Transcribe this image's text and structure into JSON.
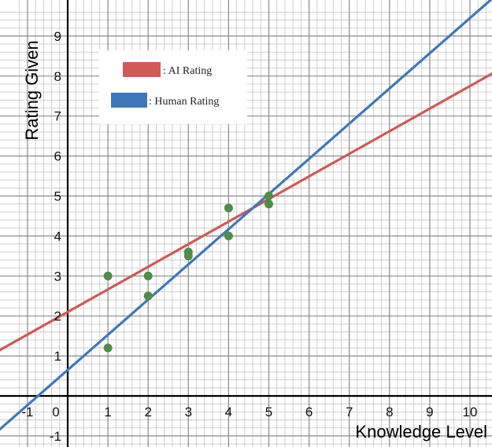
{
  "chart_data": {
    "type": "scatter",
    "xlabel": "Knowledge Level",
    "ylabel": "Rating Given",
    "xlim": [
      -1.3,
      10.6
    ],
    "ylim": [
      -1.3,
      9.7
    ],
    "grid": true,
    "x_ticks": [
      "-1",
      "0",
      "1",
      "2",
      "3",
      "4",
      "5",
      "6",
      "7",
      "8",
      "9",
      "10"
    ],
    "y_ticks": [
      "-1",
      "1",
      "2",
      "3",
      "4",
      "5",
      "6",
      "7",
      "8",
      "9"
    ],
    "points": [
      {
        "x": 1,
        "y": 3.0
      },
      {
        "x": 1,
        "y": 1.2
      },
      {
        "x": 2,
        "y": 3.0
      },
      {
        "x": 2,
        "y": 2.5
      },
      {
        "x": 3,
        "y": 3.6
      },
      {
        "x": 3,
        "y": 3.5
      },
      {
        "x": 4,
        "y": 4.7
      },
      {
        "x": 4,
        "y": 4.0
      },
      {
        "x": 5,
        "y": 5.0
      },
      {
        "x": 5,
        "y": 4.8
      }
    ],
    "lines": [
      {
        "name": ": AI Rating",
        "slope": 0.565,
        "intercept": 2.1,
        "color": "#cf5a57"
      },
      {
        "name": ": Human Rating",
        "slope": 0.88,
        "intercept": 0.65,
        "color": "#3f77bb"
      }
    ],
    "point_color": "#4e8d45",
    "legend_position": "top-left"
  }
}
